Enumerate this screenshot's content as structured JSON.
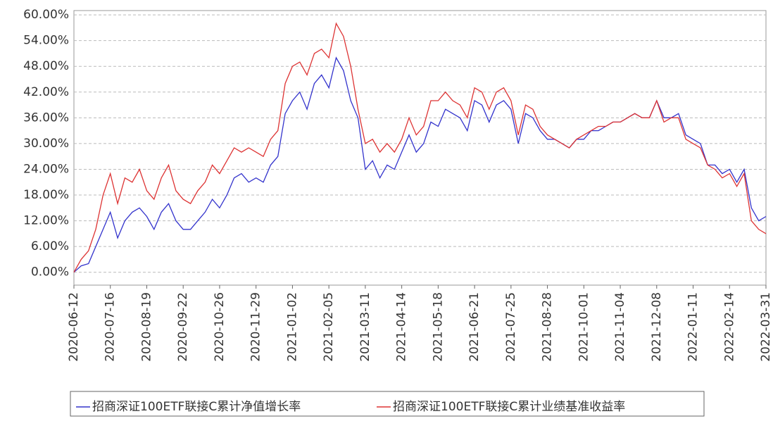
{
  "chart_data": {
    "type": "line",
    "categories": [
      "2020-06-12",
      null,
      null,
      null,
      null,
      "2020-07-16",
      null,
      null,
      null,
      null,
      "2020-08-19",
      null,
      null,
      null,
      null,
      "2020-09-22",
      null,
      null,
      null,
      null,
      "2020-10-26",
      null,
      null,
      null,
      null,
      "2020-11-29",
      null,
      null,
      null,
      null,
      "2021-01-02",
      null,
      null,
      null,
      null,
      "2021-02-05",
      null,
      null,
      null,
      null,
      "2021-03-11",
      null,
      null,
      null,
      null,
      "2021-04-14",
      null,
      null,
      null,
      null,
      "2021-05-18",
      null,
      null,
      null,
      null,
      "2021-06-21",
      null,
      null,
      null,
      null,
      "2021-07-25",
      null,
      null,
      null,
      null,
      "2021-08-28",
      null,
      null,
      null,
      null,
      "2021-10-01",
      null,
      null,
      null,
      null,
      "2021-11-04",
      null,
      null,
      null,
      null,
      "2021-12-08",
      null,
      null,
      null,
      null,
      "2022-01-11",
      null,
      null,
      null,
      null,
      "2022-02-14",
      null,
      null,
      null,
      null,
      "2022-03-31"
    ],
    "series": [
      {
        "name": "招商深证100ETF联接C累计净值增长率",
        "color": "#3333cc",
        "values": [
          0,
          1.5,
          2,
          6,
          10,
          14,
          8,
          12,
          14,
          15,
          13,
          10,
          14,
          16,
          12,
          10,
          10,
          12,
          14,
          17,
          15,
          18,
          22,
          23,
          21,
          22,
          21,
          25,
          27,
          37,
          40,
          42,
          38,
          44,
          46,
          43,
          50,
          47,
          40,
          36,
          24,
          26,
          22,
          25,
          24,
          28,
          32,
          28,
          30,
          35,
          34,
          38,
          37,
          36,
          33,
          40,
          39,
          35,
          39,
          40,
          38,
          30,
          37,
          36,
          33,
          31,
          31,
          30,
          29,
          31,
          31,
          33,
          33,
          34,
          35,
          35,
          36,
          37,
          36,
          36,
          40,
          36,
          36,
          37,
          32,
          31,
          30,
          25,
          25,
          23,
          24,
          21,
          24,
          15,
          12,
          13
        ]
      },
      {
        "name": "招商深证100ETF联接C累计业绩基准收益率",
        "color": "#dd3333",
        "values": [
          0,
          3,
          5,
          10,
          18,
          23,
          16,
          22,
          21,
          24,
          19,
          17,
          22,
          25,
          19,
          17,
          16,
          19,
          21,
          25,
          23,
          26,
          29,
          28,
          29,
          28,
          27,
          31,
          33,
          44,
          48,
          49,
          46,
          51,
          52,
          50,
          58,
          55,
          48,
          38,
          30,
          31,
          28,
          30,
          28,
          31,
          36,
          32,
          34,
          40,
          40,
          42,
          40,
          39,
          36,
          43,
          42,
          38,
          42,
          43,
          40,
          32,
          39,
          38,
          34,
          32,
          31,
          30,
          29,
          31,
          32,
          33,
          34,
          34,
          35,
          35,
          36,
          37,
          36,
          36,
          40,
          35,
          36,
          36,
          31,
          30,
          29,
          25,
          24,
          22,
          23,
          20,
          23,
          12,
          10,
          9
        ]
      }
    ],
    "ylim": [
      -3,
      61
    ],
    "yticks": [
      {
        "value": 0,
        "label": "0.00%"
      },
      {
        "value": 6,
        "label": "6.00%"
      },
      {
        "value": 12,
        "label": "12.00%"
      },
      {
        "value": 18,
        "label": "18.00%"
      },
      {
        "value": 24,
        "label": "24.00%"
      },
      {
        "value": 30,
        "label": "30.00%"
      },
      {
        "value": 36,
        "label": "36.00%"
      },
      {
        "value": 42,
        "label": "42.00%"
      },
      {
        "value": 48,
        "label": "48.00%"
      },
      {
        "value": 54,
        "label": "54.00%"
      },
      {
        "value": 60,
        "label": "60.00%"
      }
    ],
    "grid": true
  }
}
